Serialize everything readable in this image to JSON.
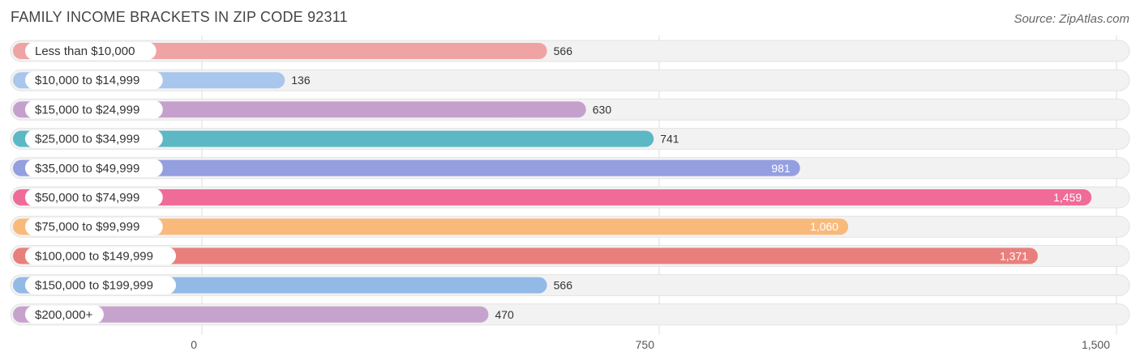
{
  "title": "FAMILY INCOME BRACKETS IN ZIP CODE 92311",
  "source": "Source: ZipAtlas.com",
  "chart_data": {
    "type": "bar",
    "orientation": "horizontal",
    "categories": [
      "Less than $10,000",
      "$10,000 to $14,999",
      "$15,000 to $24,999",
      "$25,000 to $34,999",
      "$35,000 to $49,999",
      "$50,000 to $74,999",
      "$75,000 to $99,999",
      "$100,000 to $149,999",
      "$150,000 to $199,999",
      "$200,000+"
    ],
    "values": [
      566,
      136,
      630,
      741,
      981,
      1459,
      1060,
      1371,
      566,
      470
    ],
    "value_labels": [
      "566",
      "136",
      "630",
      "741",
      "981",
      "1,459",
      "1,060",
      "1,371",
      "566",
      "470"
    ],
    "colors": [
      "#f0a3a3",
      "#a9c6ec",
      "#c6a0cc",
      "#5bb8c4",
      "#949fe0",
      "#f06b97",
      "#f9b97a",
      "#e97f7c",
      "#93b9e6",
      "#c6a3cc"
    ],
    "xlim": [
      0,
      1500
    ],
    "xticks": [
      0,
      750,
      1500
    ],
    "xtick_labels": [
      "0",
      "750",
      "1,500"
    ],
    "grid": true
  }
}
